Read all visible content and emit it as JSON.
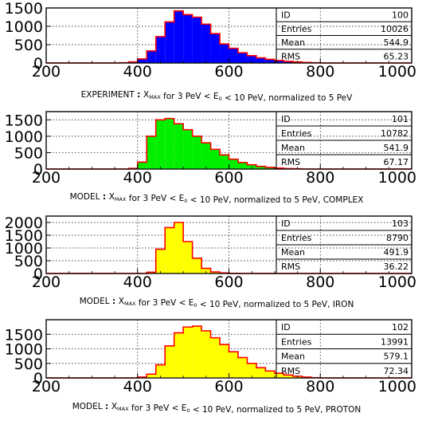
{
  "chart_data": [
    {
      "type": "bar",
      "caption": {
        "prefix": "EXPERIMENT",
        "x_sym": "X",
        "x_sub": "MAX",
        "mid": " for 3 PeV < E",
        "e_sub": "0",
        "suffix": " < 10 PeV, normalized to 5 PeV"
      },
      "xlim": [
        200,
        1000
      ],
      "ylim": [
        0,
        1500
      ],
      "xticks": [
        "200",
        "400",
        "600",
        "800",
        "1000"
      ],
      "yticks": [
        "0",
        "500",
        "1000",
        "1500"
      ],
      "ytick_values": [
        0,
        500,
        1000,
        1500
      ],
      "fill": "#0000ff",
      "outline": "#ff0000",
      "stats": {
        "id_label": "ID",
        "id": "100",
        "entries_label": "Entries",
        "entries": "10026",
        "mean_label": "Mean",
        "mean": "544.9",
        "rms_label": "RMS",
        "rms": "65.23"
      },
      "bin_width": 20,
      "bin_edges_start": 360,
      "values": [
        8,
        30,
        110,
        330,
        720,
        1120,
        1420,
        1320,
        1250,
        1060,
        800,
        520,
        400,
        280,
        200,
        140,
        100,
        70,
        45,
        28,
        15,
        8
      ]
    },
    {
      "type": "bar",
      "caption": {
        "prefix": "MODEL",
        "x_sym": "X",
        "x_sub": "MAX",
        "mid": " for 3 PeV < E",
        "e_sub": "0",
        "suffix": " < 10 PeV, normalized to 5 PeV, COMPLEX"
      },
      "xlim": [
        200,
        1000
      ],
      "ylim": [
        0,
        1750
      ],
      "xticks": [
        "200",
        "400",
        "600",
        "800",
        "1000"
      ],
      "yticks": [
        "0",
        "500",
        "1000",
        "1500"
      ],
      "ytick_values": [
        0,
        500,
        1000,
        1500
      ],
      "fill": "#00ee00",
      "outline": "#ff0000",
      "stats": {
        "id_label": "ID",
        "id": "101",
        "entries_label": "Entries",
        "entries": "10782",
        "mean_label": "Mean",
        "mean": "541.9",
        "rms_label": "RMS",
        "rms": "67.17"
      },
      "bin_width": 20,
      "bin_edges_start": 380,
      "values": [
        20,
        210,
        1000,
        1500,
        1540,
        1380,
        1200,
        1000,
        800,
        600,
        430,
        300,
        200,
        130,
        80,
        50,
        30,
        15,
        8
      ]
    },
    {
      "type": "bar",
      "caption": {
        "prefix": "MODEL",
        "x_sym": "X",
        "x_sub": "MAX",
        "mid": " for 3 PeV < E",
        "e_sub": "0",
        "suffix": " < 10 PeV, normalized to 5 PeV, IRON"
      },
      "xlim": [
        200,
        1000
      ],
      "ylim": [
        0,
        2250
      ],
      "xticks": [
        "200",
        "400",
        "600",
        "800",
        "1000"
      ],
      "yticks": [
        "0",
        "500",
        "1000",
        "1500",
        "2000"
      ],
      "ytick_values": [
        0,
        500,
        1000,
        1500,
        2000
      ],
      "fill": "#ffff00",
      "outline": "#ff0000",
      "stats": {
        "id_label": "ID",
        "id": "103",
        "entries_label": "Entries",
        "entries": "8790",
        "mean_label": "Mean",
        "mean": "491.9",
        "rms_label": "RMS",
        "rms": "36.22"
      },
      "bin_width": 20,
      "bin_edges_start": 420,
      "values": [
        50,
        950,
        1800,
        2000,
        1250,
        600,
        200,
        60,
        20,
        5
      ]
    },
    {
      "type": "bar",
      "caption": {
        "prefix": "MODEL",
        "x_sym": "X",
        "x_sub": "MAX",
        "mid": " for 3 PeV < E",
        "e_sub": "0",
        "suffix": " < 10 PeV, normalized to 5 PeV, PROTON"
      },
      "xlim": [
        200,
        1000
      ],
      "ylim": [
        0,
        2000
      ],
      "xticks": [
        "200",
        "400",
        "600",
        "800",
        "1000"
      ],
      "yticks": [
        "0",
        "500",
        "1000",
        "1500"
      ],
      "ytick_values": [
        0,
        500,
        1000,
        1500
      ],
      "fill": "#ffff00",
      "outline": "#ff0000",
      "stats": {
        "id_label": "ID",
        "id": "102",
        "entries_label": "Entries",
        "entries": "13991",
        "mean_label": "Mean",
        "mean": "579.1",
        "rms_label": "RMS",
        "rms": "72.34"
      },
      "bin_width": 20,
      "bin_edges_start": 400,
      "values": [
        30,
        130,
        450,
        1100,
        1550,
        1750,
        1780,
        1620,
        1380,
        1150,
        900,
        700,
        500,
        350,
        240,
        160,
        100,
        60,
        30,
        10
      ]
    }
  ]
}
